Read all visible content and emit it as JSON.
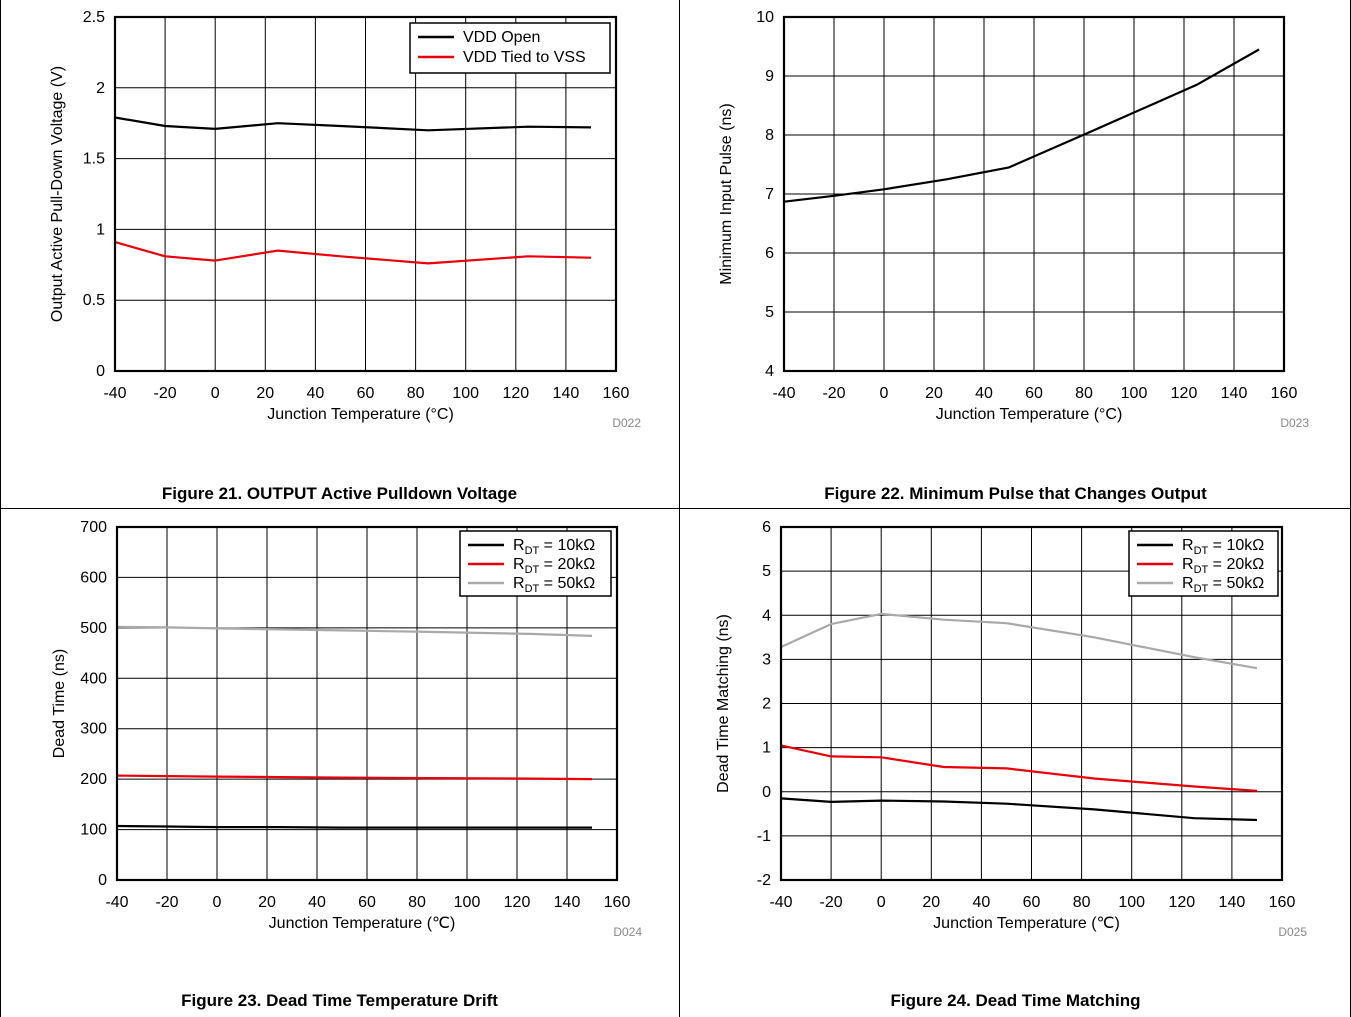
{
  "chart_data": [
    {
      "type": "line",
      "caption": "Figure 21. OUTPUT Active Pulldown Voltage",
      "code": "D022",
      "xlabel": "Junction Temperature (°C)",
      "ylabel": "Output Active Pull-Down Voltage (V)",
      "xlim": [
        -40,
        160
      ],
      "ylim": [
        0,
        2.5
      ],
      "xticks": [
        -40,
        -20,
        0,
        20,
        40,
        60,
        80,
        100,
        120,
        140,
        160
      ],
      "xtick_labels": [
        "-40",
        "-20",
        "0",
        "20",
        "40",
        "60",
        "80",
        "100",
        "120",
        "140",
        "160"
      ],
      "yticks": [
        0,
        0.5,
        1,
        1.5,
        2,
        2.5
      ],
      "ytick_labels": [
        "0",
        "0.5",
        "1",
        "1.5",
        "2",
        "2.5"
      ],
      "grid": true,
      "legend_position": "top-right",
      "series": [
        {
          "name": "VDD Open",
          "color": "#000000",
          "legend_label": "VDD Open",
          "x": [
            -40,
            -20,
            0,
            25,
            50,
            85,
            125,
            150
          ],
          "y": [
            1.79,
            1.73,
            1.71,
            1.75,
            1.73,
            1.7,
            1.725,
            1.72
          ]
        },
        {
          "name": "VDD Tied to VSS",
          "color": "#e8000b",
          "legend_label": "VDD Tied to VSS",
          "x": [
            -40,
            -20,
            0,
            25,
            50,
            85,
            125,
            150
          ],
          "y": [
            0.91,
            0.81,
            0.78,
            0.85,
            0.81,
            0.76,
            0.81,
            0.8
          ]
        }
      ]
    },
    {
      "type": "line",
      "caption": "Figure 22. Minimum Pulse that Changes Output",
      "code": "D023",
      "xlabel": "Junction Temperature (°C)",
      "ylabel": "Minimum Input Pulse (ns)",
      "xlim": [
        -40,
        160
      ],
      "ylim": [
        4,
        10
      ],
      "xticks": [
        -40,
        -20,
        0,
        20,
        40,
        60,
        80,
        100,
        120,
        140,
        160
      ],
      "xtick_labels": [
        "-40",
        "-20",
        "0",
        "20",
        "40",
        "60",
        "80",
        "100",
        "120",
        "140",
        "160"
      ],
      "yticks": [
        4,
        5,
        6,
        7,
        8,
        9,
        10
      ],
      "ytick_labels": [
        "4",
        "5",
        "6",
        "7",
        "8",
        "9",
        "10"
      ],
      "grid": true,
      "legend_position": "none",
      "series": [
        {
          "color": "#000000",
          "x": [
            -40,
            -20,
            0,
            25,
            50,
            85,
            125,
            150
          ],
          "y": [
            6.87,
            6.97,
            7.08,
            7.25,
            7.45,
            8.1,
            8.85,
            9.45
          ]
        }
      ]
    },
    {
      "type": "line",
      "caption": "Figure 23. Dead Time Temperature Drift",
      "code": "D024",
      "xlabel": "Junction Temperature (℃)",
      "ylabel": "Dead Time (ns)",
      "xlim": [
        -40,
        160
      ],
      "ylim": [
        0,
        700
      ],
      "xticks": [
        -40,
        -20,
        0,
        20,
        40,
        60,
        80,
        100,
        120,
        140,
        160
      ],
      "xtick_labels": [
        "-40",
        "-20",
        "0",
        "20",
        "40",
        "60",
        "80",
        "100",
        "120",
        "140",
        "160"
      ],
      "yticks": [
        0,
        100,
        200,
        300,
        400,
        500,
        600,
        700
      ],
      "ytick_labels": [
        "0",
        "100",
        "200",
        "300",
        "400",
        "500",
        "600",
        "700"
      ],
      "grid": true,
      "legend_position": "top-right",
      "series": [
        {
          "name": "RDT = 10kΩ",
          "color": "#000000",
          "legend_main": "R",
          "legend_sub": "DT",
          "legend_rest": " = 10kΩ",
          "x": [
            -40,
            -20,
            0,
            25,
            50,
            85,
            125,
            150
          ],
          "y": [
            107,
            106,
            105,
            105,
            104,
            104,
            104,
            104
          ]
        },
        {
          "name": "RDT = 20kΩ",
          "color": "#e8000b",
          "legend_main": "R",
          "legend_sub": "DT",
          "legend_rest": " = 20kΩ",
          "x": [
            -40,
            -20,
            0,
            25,
            50,
            85,
            125,
            150
          ],
          "y": [
            207,
            206,
            205,
            204,
            203,
            202,
            201,
            200
          ]
        },
        {
          "name": "RDT = 50kΩ",
          "color": "#a9a9a9",
          "legend_main": "R",
          "legend_sub": "DT",
          "legend_rest": " = 50kΩ",
          "x": [
            -40,
            -20,
            0,
            25,
            50,
            85,
            125,
            150
          ],
          "y": [
            502,
            501,
            499,
            497,
            495,
            492,
            488,
            484
          ]
        }
      ]
    },
    {
      "type": "line",
      "caption": "Figure 24. Dead Time Matching",
      "code": "D025",
      "xlabel": "Junction Temperature (℃)",
      "ylabel": "Dead Time Matching (ns)",
      "xlim": [
        -40,
        160
      ],
      "ylim": [
        -2,
        6
      ],
      "xticks": [
        -40,
        -20,
        0,
        20,
        40,
        60,
        80,
        100,
        120,
        140,
        160
      ],
      "xtick_labels": [
        "-40",
        "-20",
        "0",
        "20",
        "40",
        "60",
        "80",
        "100",
        "120",
        "140",
        "160"
      ],
      "yticks": [
        -2,
        -1,
        0,
        1,
        2,
        3,
        4,
        5,
        6
      ],
      "ytick_labels": [
        "-2",
        "-1",
        "0",
        "1",
        "2",
        "3",
        "4",
        "5",
        "6"
      ],
      "grid": true,
      "legend_position": "top-right",
      "series": [
        {
          "name": "RDT = 10kΩ",
          "color": "#000000",
          "legend_main": "R",
          "legend_sub": "DT",
          "legend_rest": " = 10kΩ",
          "x": [
            -40,
            -20,
            0,
            25,
            50,
            85,
            125,
            150
          ],
          "y": [
            -0.15,
            -0.23,
            -0.2,
            -0.22,
            -0.27,
            -0.4,
            -0.6,
            -0.64
          ]
        },
        {
          "name": "RDT = 20kΩ",
          "color": "#e8000b",
          "legend_main": "R",
          "legend_sub": "DT",
          "legend_rest": " = 20kΩ",
          "x": [
            -40,
            -20,
            0,
            25,
            50,
            85,
            125,
            150
          ],
          "y": [
            1.05,
            0.8,
            0.78,
            0.56,
            0.53,
            0.3,
            0.12,
            0.02
          ]
        },
        {
          "name": "RDT = 50kΩ",
          "color": "#a9a9a9",
          "legend_main": "R",
          "legend_sub": "DT",
          "legend_rest": " = 50kΩ",
          "x": [
            -40,
            -20,
            0,
            25,
            50,
            85,
            125,
            150
          ],
          "y": [
            3.28,
            3.8,
            4.03,
            3.9,
            3.82,
            3.5,
            3.05,
            2.8
          ]
        }
      ]
    }
  ]
}
